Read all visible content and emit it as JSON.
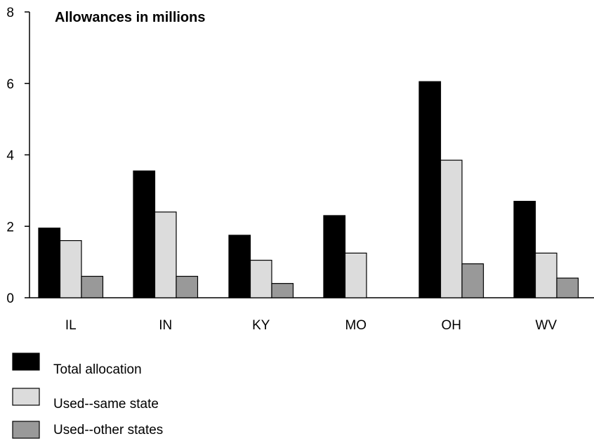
{
  "chart_data": {
    "type": "bar",
    "title": "Allowances in millions",
    "xlabel": "",
    "ylabel": "",
    "ylim": [
      0,
      8
    ],
    "yticks": [
      0,
      2,
      4,
      6,
      8
    ],
    "grid": false,
    "legend_position": "bottom-left",
    "categories": [
      "IL",
      "IN",
      "KY",
      "MO",
      "OH",
      "WV"
    ],
    "series": [
      {
        "name": "Total allocation",
        "color": "#000000",
        "values": [
          1.95,
          3.55,
          1.75,
          2.3,
          6.05,
          2.7
        ]
      },
      {
        "name": "Used--same state",
        "color": "#dcdcdc",
        "values": [
          1.6,
          2.4,
          1.05,
          1.25,
          3.85,
          1.25
        ]
      },
      {
        "name": "Used--other states",
        "color": "#999999",
        "values": [
          0.6,
          0.6,
          0.4,
          null,
          0.95,
          0.55
        ]
      }
    ]
  }
}
